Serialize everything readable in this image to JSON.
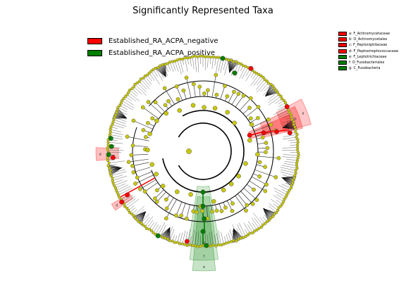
{
  "title": "Significantly Represented Taxa",
  "main_legend": [
    {
      "label": "Established_RA_ACPA_negative",
      "color": "#ff0000"
    },
    {
      "label": "Established_RA_ACPA_positive",
      "color": "#008000"
    }
  ],
  "side_legend": [
    {
      "label": "a: F_Actinomycetaceae",
      "color": "#ff0000"
    },
    {
      "label": "b: O_Actinomycetales",
      "color": "#ff0000"
    },
    {
      "label": "c: F_Peptoniphilaceae",
      "color": "#ff0000"
    },
    {
      "label": "d: F_Peptostreptococcaceae",
      "color": "#ff0000"
    },
    {
      "label": "e: F_Leptotrichiaceae",
      "color": "#008000"
    },
    {
      "label": "f: O_Fusobacteriales",
      "color": "#008000"
    },
    {
      "label": "g: C_Fusobacteria",
      "color": "#008000"
    }
  ],
  "clade_letters": [
    "a",
    "b",
    "c",
    "d",
    "e",
    "f",
    "g"
  ],
  "colors": {
    "default_node": "#c8c800",
    "negative": "#ff0000",
    "positive": "#008000"
  }
}
